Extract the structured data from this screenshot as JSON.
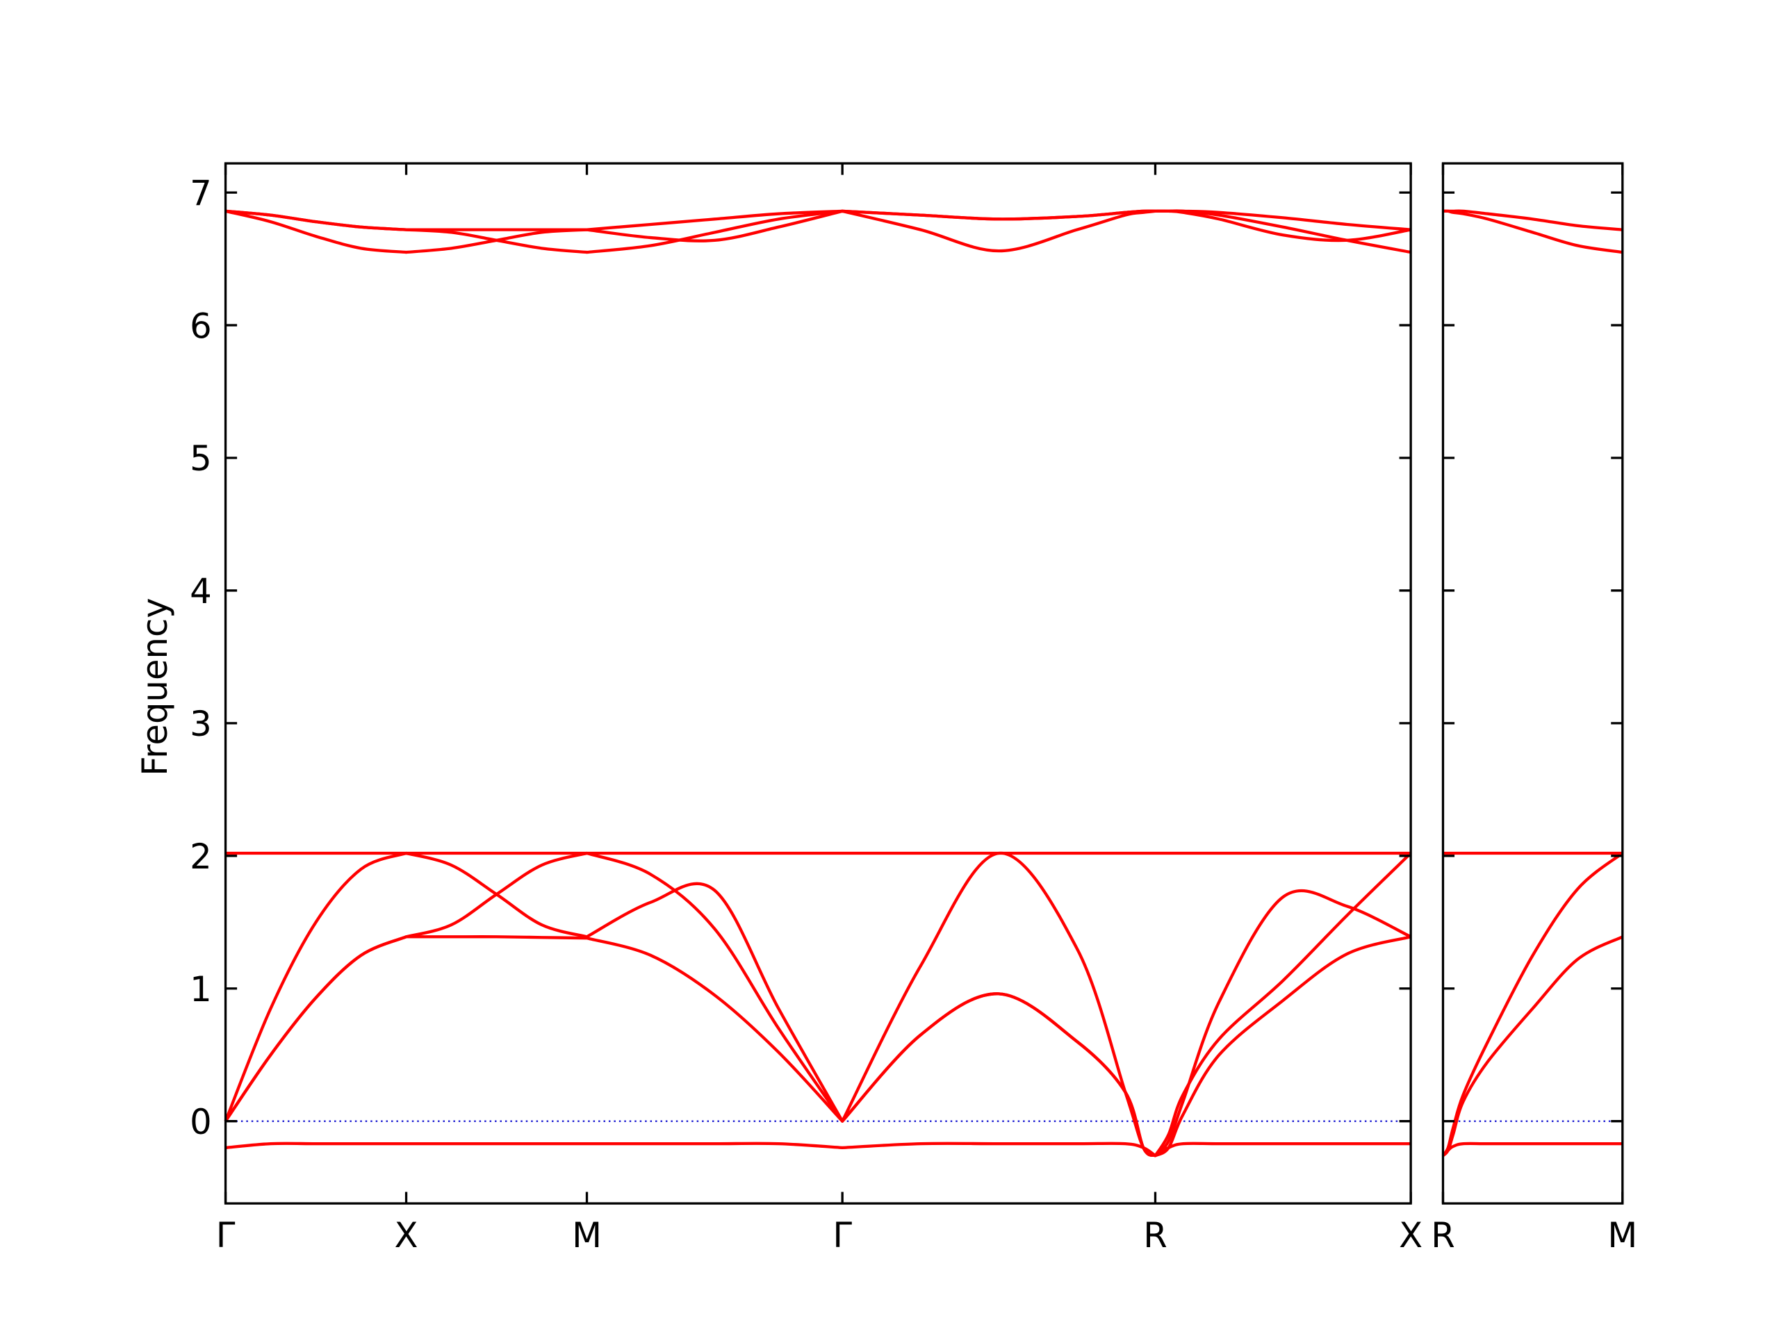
{
  "chart_data": [
    {
      "type": "line",
      "ylabel": "Frequency",
      "color": "#ff0000",
      "hlines": [
        0
      ],
      "hline_color": "#0000cc",
      "xlim": [
        0,
        3.2802
      ],
      "ylim": [
        -0.62,
        7.22
      ],
      "xticks": [
        {
          "value": 0,
          "label": "Γ"
        },
        {
          "value": 0.5,
          "label": "X"
        },
        {
          "value": 1.0,
          "label": "M"
        },
        {
          "value": 1.7071,
          "label": "Γ"
        },
        {
          "value": 2.5731,
          "label": "R"
        },
        {
          "value": 3.2802,
          "label": "X"
        }
      ],
      "yticks": [
        0,
        1,
        2,
        3,
        4,
        5,
        6,
        7
      ],
      "x": [
        0,
        0.125,
        0.25,
        0.375,
        0.5,
        0.625,
        0.75,
        0.875,
        1.0,
        1.1768,
        1.3536,
        1.5303,
        1.7071,
        1.9236,
        2.1401,
        2.3566,
        2.49,
        2.54,
        2.5731,
        2.61,
        2.65,
        2.7499,
        2.9267,
        3.1034,
        3.2802
      ],
      "series": [
        {
          "values": [
            -0.2,
            -0.17,
            -0.17,
            -0.17,
            -0.17,
            -0.17,
            -0.17,
            -0.17,
            -0.17,
            -0.17,
            -0.17,
            -0.17,
            -0.2,
            -0.17,
            -0.17,
            -0.17,
            -0.17,
            -0.2,
            -0.26,
            -0.2,
            -0.17,
            -0.17,
            -0.17,
            -0.17,
            -0.17
          ]
        },
        {
          "values": [
            0,
            0.5,
            0.93,
            1.25,
            1.39,
            1.39,
            1.39,
            1.385,
            1.38,
            1.25,
            0.95,
            0.52,
            0,
            0.65,
            0.96,
            0.6,
            0.22,
            -0.2,
            -0.26,
            -0.2,
            0.05,
            0.5,
            0.91,
            1.26,
            1.39
          ]
        },
        {
          "values": [
            0,
            0.85,
            1.5,
            1.9,
            2.02,
            1.93,
            1.71,
            1.48,
            1.39,
            1.65,
            1.74,
            0.85,
            0,
            1.17,
            2.02,
            1.3,
            0.22,
            -0.2,
            -0.26,
            -0.15,
            0.15,
            0.9,
            1.69,
            1.62,
            1.39
          ]
        },
        {
          "values": [
            0,
            0.5,
            0.93,
            1.25,
            1.39,
            1.48,
            1.71,
            1.93,
            2.02,
            1.86,
            1.45,
            0.7,
            0,
            0.65,
            0.96,
            0.6,
            0.22,
            -0.2,
            -0.26,
            -0.1,
            0.2,
            0.62,
            1.06,
            1.55,
            2.02
          ]
        },
        {
          "values": [
            2.02,
            2.02,
            2.02,
            2.02,
            2.02,
            2.02,
            2.02,
            2.02,
            2.02,
            2.02,
            2.02,
            2.02,
            2.02,
            2.02,
            2.02,
            2.02,
            2.02,
            2.02,
            2.02,
            2.02,
            2.02,
            2.02,
            2.02,
            2.02,
            2.02
          ]
        },
        {
          "values": [
            6.86,
            6.83,
            6.78,
            6.74,
            6.72,
            6.72,
            6.72,
            6.72,
            6.72,
            6.76,
            6.8,
            6.84,
            6.86,
            6.83,
            6.8,
            6.82,
            6.85,
            6.86,
            6.86,
            6.86,
            6.86,
            6.85,
            6.81,
            6.76,
            6.72
          ]
        },
        {
          "values": [
            6.86,
            6.78,
            6.67,
            6.58,
            6.55,
            6.58,
            6.64,
            6.7,
            6.72,
            6.66,
            6.64,
            6.74,
            6.86,
            6.72,
            6.56,
            6.72,
            6.83,
            6.85,
            6.86,
            6.86,
            6.85,
            6.8,
            6.68,
            6.64,
            6.72
          ]
        },
        {
          "values": [
            6.86,
            6.83,
            6.78,
            6.74,
            6.72,
            6.7,
            6.64,
            6.58,
            6.55,
            6.6,
            6.7,
            6.8,
            6.86,
            6.83,
            6.8,
            6.82,
            6.85,
            6.86,
            6.86,
            6.86,
            6.86,
            6.83,
            6.74,
            6.64,
            6.55
          ]
        }
      ]
    },
    {
      "type": "line",
      "color": "#ff0000",
      "hlines": [
        0
      ],
      "hline_color": "#0000cc",
      "xlim": [
        0,
        0.7071
      ],
      "ylim": [
        -0.62,
        7.22
      ],
      "xticks": [
        {
          "value": 0,
          "label": "R"
        },
        {
          "value": 0.7071,
          "label": "M"
        }
      ],
      "x": [
        0,
        0.02,
        0.04,
        0.08,
        0.1768,
        0.3536,
        0.5303,
        0.7071
      ],
      "series": [
        {
          "values": [
            -0.26,
            -0.22,
            -0.19,
            -0.17,
            -0.17,
            -0.17,
            -0.17,
            -0.17
          ]
        },
        {
          "values": [
            -0.26,
            -0.2,
            -0.05,
            0.2,
            0.6,
            1.25,
            1.75,
            2.02
          ]
        },
        {
          "values": [
            -0.26,
            -0.22,
            -0.1,
            0.15,
            0.45,
            0.85,
            1.22,
            1.39
          ]
        },
        {
          "values": [
            2.02,
            2.02,
            2.02,
            2.02,
            2.02,
            2.02,
            2.02,
            2.02
          ]
        },
        {
          "values": [
            6.86,
            6.86,
            6.86,
            6.86,
            6.84,
            6.8,
            6.75,
            6.72
          ]
        },
        {
          "values": [
            6.86,
            6.86,
            6.85,
            6.84,
            6.8,
            6.7,
            6.6,
            6.55
          ]
        }
      ]
    }
  ]
}
